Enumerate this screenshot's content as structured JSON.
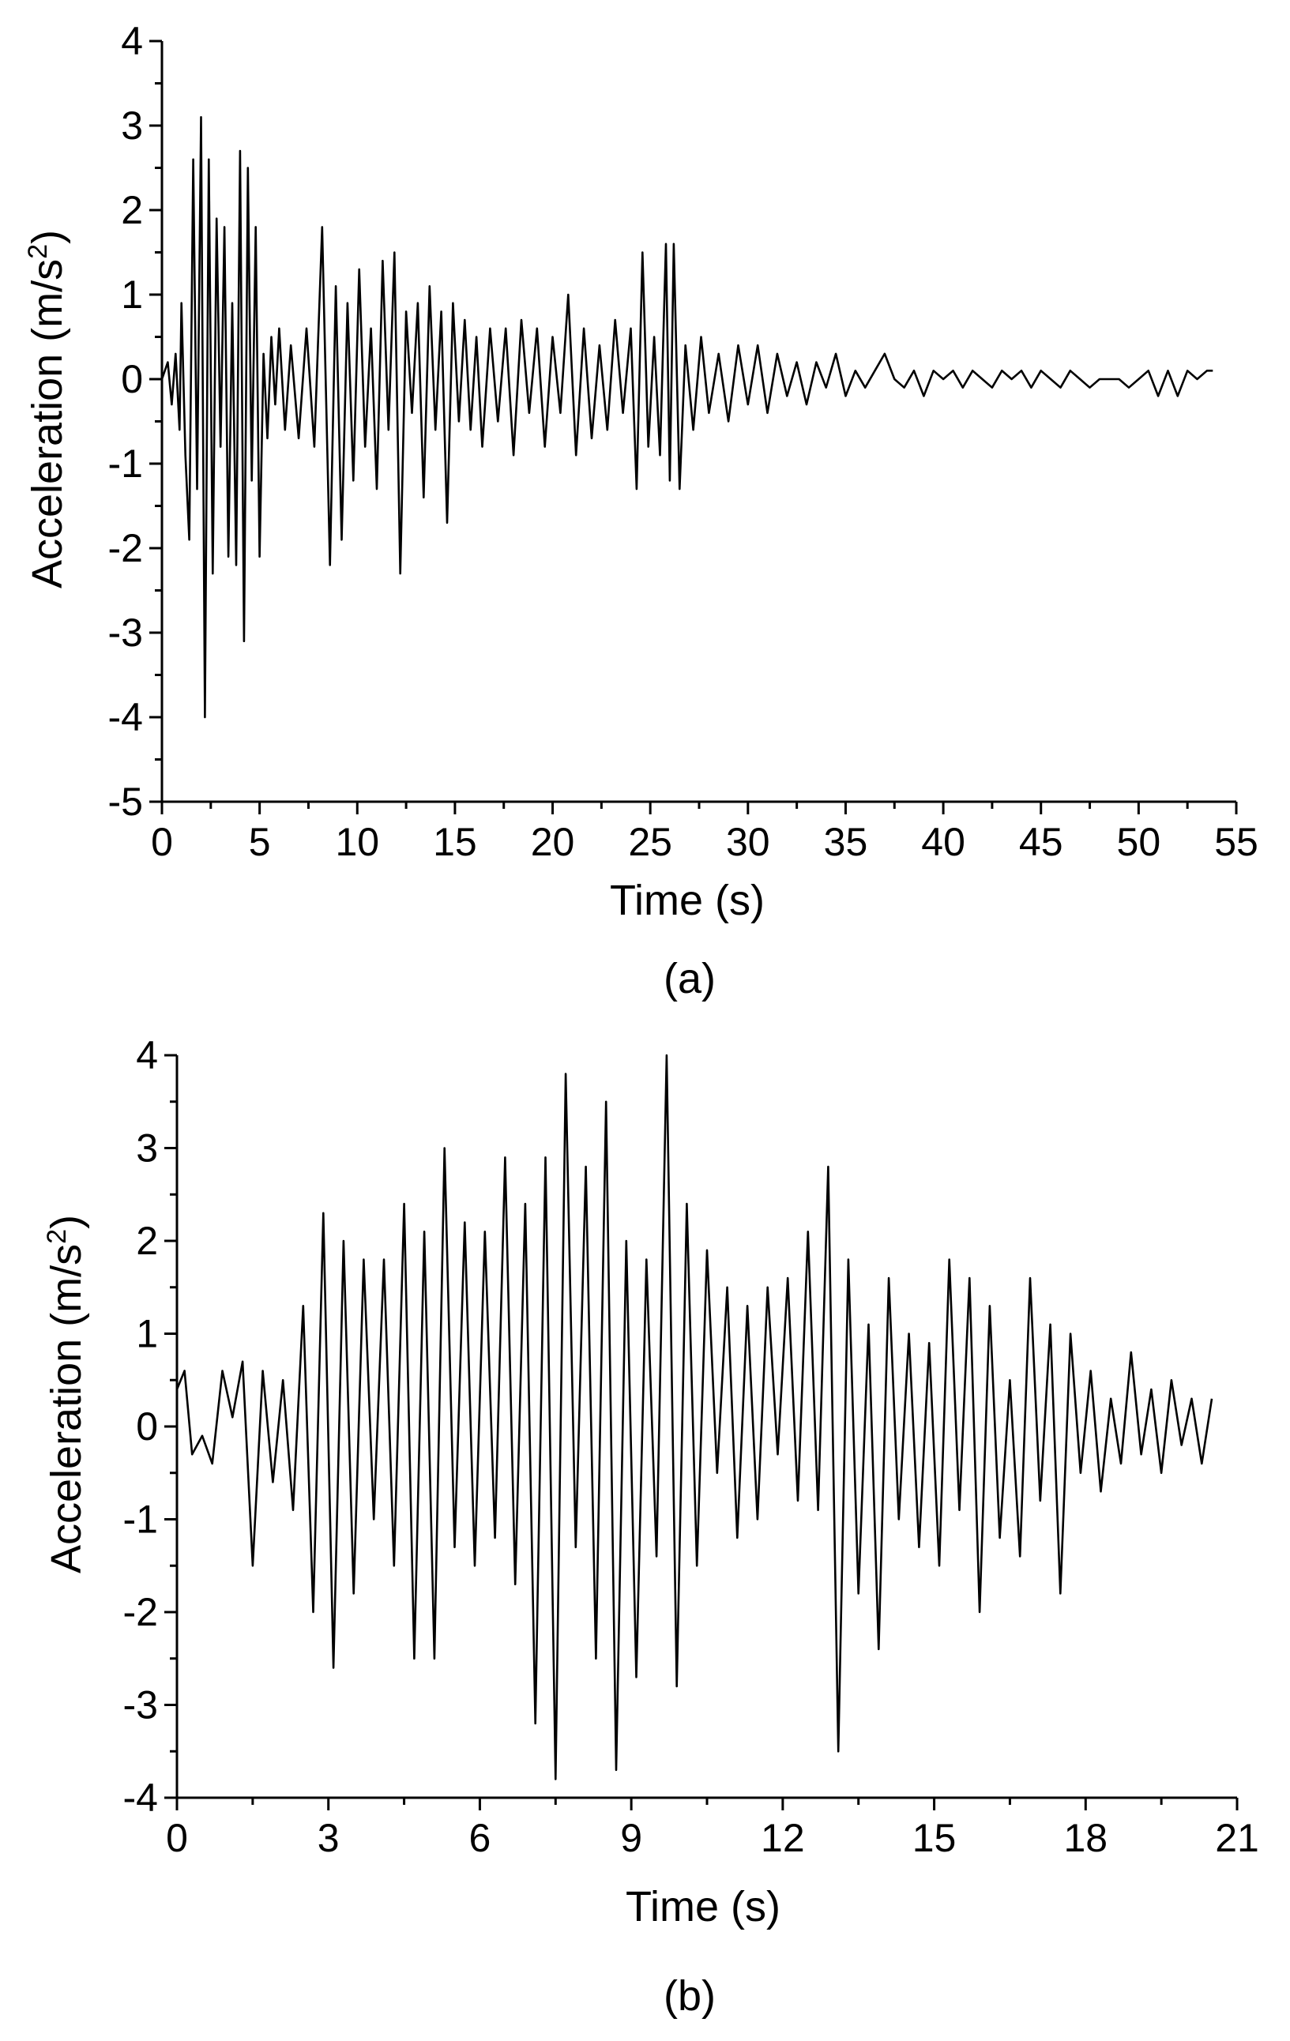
{
  "chart_data": [
    {
      "type": "line",
      "panel_label": "(a)",
      "xlabel": "Time (s)",
      "ylabel_main": "Acceleration (m/s",
      "ylabel_sup": "2",
      "ylabel_tail": ")",
      "xlim": [
        0,
        55
      ],
      "ylim": [
        -5,
        4
      ],
      "xticks": [
        0,
        5,
        10,
        15,
        20,
        25,
        30,
        35,
        40,
        45,
        50,
        55
      ],
      "yticks": [
        4,
        3,
        2,
        1,
        0,
        -1,
        -2,
        -3,
        -4,
        -5
      ],
      "series": [
        {
          "color": "#000000",
          "x": [
            0,
            0.3,
            0.5,
            0.7,
            0.9,
            1.0,
            1.2,
            1.4,
            1.6,
            1.8,
            2.0,
            2.2,
            2.4,
            2.6,
            2.8,
            3.0,
            3.2,
            3.4,
            3.6,
            3.8,
            4.0,
            4.2,
            4.4,
            4.6,
            4.8,
            5.0,
            5.2,
            5.4,
            5.6,
            5.8,
            6.0,
            6.3,
            6.6,
            7.0,
            7.4,
            7.8,
            8.2,
            8.6,
            8.9,
            9.2,
            9.5,
            9.8,
            10.1,
            10.4,
            10.7,
            11.0,
            11.3,
            11.6,
            11.9,
            12.2,
            12.5,
            12.8,
            13.1,
            13.4,
            13.7,
            14.0,
            14.3,
            14.6,
            14.9,
            15.2,
            15.5,
            15.8,
            16.1,
            16.4,
            16.8,
            17.2,
            17.6,
            18.0,
            18.4,
            18.8,
            19.2,
            19.6,
            20.0,
            20.4,
            20.8,
            21.2,
            21.6,
            22.0,
            22.4,
            22.8,
            23.2,
            23.6,
            24.0,
            24.3,
            24.6,
            24.9,
            25.2,
            25.5,
            25.8,
            26.0,
            26.2,
            26.5,
            26.8,
            27.2,
            27.6,
            28.0,
            28.5,
            29.0,
            29.5,
            30.0,
            30.5,
            31.0,
            31.5,
            32.0,
            32.5,
            33.0,
            33.5,
            34.0,
            34.5,
            35.0,
            35.5,
            36.0,
            36.5,
            37.0,
            37.5,
            38.0,
            38.5,
            39.0,
            39.5,
            40.0,
            40.5,
            41.0,
            41.5,
            42.0,
            42.5,
            43.0,
            43.5,
            44.0,
            44.5,
            45.0,
            45.5,
            46.0,
            46.5,
            47.0,
            47.5,
            48.0,
            48.5,
            49.0,
            49.5,
            50.0,
            50.5,
            51.0,
            51.5,
            52.0,
            52.5,
            53.0,
            53.5,
            53.8
          ],
          "y": [
            0,
            0.2,
            -0.3,
            0.3,
            -0.6,
            0.9,
            -0.9,
            -1.9,
            2.6,
            -1.3,
            3.1,
            -4.0,
            2.6,
            -2.3,
            1.9,
            -0.8,
            1.8,
            -2.1,
            0.9,
            -2.2,
            2.7,
            -3.1,
            2.5,
            -1.2,
            1.8,
            -2.1,
            0.3,
            -0.7,
            0.5,
            -0.3,
            0.6,
            -0.6,
            0.4,
            -0.7,
            0.6,
            -0.8,
            1.8,
            -2.2,
            1.1,
            -1.9,
            0.9,
            -1.2,
            1.3,
            -0.8,
            0.6,
            -1.3,
            1.4,
            -0.6,
            1.5,
            -2.3,
            0.8,
            -0.4,
            0.9,
            -1.4,
            1.1,
            -0.6,
            0.8,
            -1.7,
            0.9,
            -0.5,
            0.7,
            -0.6,
            0.5,
            -0.8,
            0.6,
            -0.5,
            0.6,
            -0.9,
            0.7,
            -0.4,
            0.6,
            -0.8,
            0.5,
            -0.4,
            1.0,
            -0.9,
            0.6,
            -0.7,
            0.4,
            -0.6,
            0.7,
            -0.4,
            0.6,
            -1.3,
            1.5,
            -0.8,
            0.5,
            -0.9,
            1.6,
            -1.2,
            1.6,
            -1.3,
            0.4,
            -0.6,
            0.5,
            -0.4,
            0.3,
            -0.5,
            0.4,
            -0.3,
            0.4,
            -0.4,
            0.3,
            -0.2,
            0.2,
            -0.3,
            0.2,
            -0.1,
            0.3,
            -0.2,
            0.1,
            -0.1,
            0.1,
            0.3,
            0.0,
            -0.1,
            0.1,
            -0.2,
            0.1,
            0.0,
            0.1,
            -0.1,
            0.1,
            0.0,
            -0.1,
            0.1,
            0.0,
            0.1,
            -0.1,
            0.1,
            0.0,
            -0.1,
            0.1,
            0.0,
            -0.1,
            0.0,
            0.0,
            0.0,
            -0.1,
            0.0,
            0.1,
            -0.2,
            0.1,
            -0.2,
            0.1,
            0.0,
            0.1,
            0.1
          ]
        }
      ]
    },
    {
      "type": "line",
      "panel_label": "(b)",
      "xlabel": "Time (s)",
      "ylabel_main": "Acceleration (m/s",
      "ylabel_sup": "2",
      "ylabel_tail": ")",
      "xlim": [
        0,
        21
      ],
      "ylim": [
        -4,
        4
      ],
      "xticks": [
        0,
        3,
        6,
        9,
        12,
        15,
        18,
        21
      ],
      "yticks": [
        4,
        3,
        2,
        1,
        0,
        -1,
        -2,
        -3,
        -4
      ],
      "series": [
        {
          "color": "#000000",
          "x": [
            0,
            0.15,
            0.3,
            0.5,
            0.7,
            0.9,
            1.1,
            1.3,
            1.5,
            1.7,
            1.9,
            2.1,
            2.3,
            2.5,
            2.7,
            2.9,
            3.1,
            3.3,
            3.5,
            3.7,
            3.9,
            4.1,
            4.3,
            4.5,
            4.7,
            4.9,
            5.1,
            5.3,
            5.5,
            5.7,
            5.9,
            6.1,
            6.3,
            6.5,
            6.7,
            6.9,
            7.1,
            7.3,
            7.5,
            7.7,
            7.9,
            8.1,
            8.3,
            8.5,
            8.7,
            8.9,
            9.1,
            9.3,
            9.5,
            9.7,
            9.9,
            10.1,
            10.3,
            10.5,
            10.7,
            10.9,
            11.1,
            11.3,
            11.5,
            11.7,
            11.9,
            12.1,
            12.3,
            12.5,
            12.7,
            12.9,
            13.1,
            13.3,
            13.5,
            13.7,
            13.9,
            14.1,
            14.3,
            14.5,
            14.7,
            14.9,
            15.1,
            15.3,
            15.5,
            15.7,
            15.9,
            16.1,
            16.3,
            16.5,
            16.7,
            16.9,
            17.1,
            17.3,
            17.5,
            17.7,
            17.9,
            18.1,
            18.3,
            18.5,
            18.7,
            18.9,
            19.1,
            19.3,
            19.5,
            19.7,
            19.9,
            20.1,
            20.3,
            20.5
          ],
          "y": [
            0.4,
            0.6,
            -0.3,
            -0.1,
            -0.4,
            0.6,
            0.1,
            0.7,
            -1.5,
            0.6,
            -0.6,
            0.5,
            -0.9,
            1.3,
            -2.0,
            2.3,
            -2.6,
            2.0,
            -1.8,
            1.8,
            -1.0,
            1.8,
            -1.5,
            2.4,
            -2.5,
            2.1,
            -2.5,
            3.0,
            -1.3,
            2.2,
            -1.5,
            2.1,
            -1.2,
            2.9,
            -1.7,
            2.4,
            -3.2,
            2.9,
            -3.8,
            3.8,
            -1.3,
            2.8,
            -2.5,
            3.5,
            -3.7,
            2.0,
            -2.7,
            1.8,
            -1.4,
            4.0,
            -2.8,
            2.4,
            -1.5,
            1.9,
            -0.5,
            1.5,
            -1.2,
            1.3,
            -1.0,
            1.5,
            -0.3,
            1.6,
            -0.8,
            2.1,
            -0.9,
            2.8,
            -3.5,
            1.8,
            -1.8,
            1.1,
            -2.4,
            1.6,
            -1.0,
            1.0,
            -1.3,
            0.9,
            -1.5,
            1.8,
            -0.9,
            1.6,
            -2.0,
            1.3,
            -1.2,
            0.5,
            -1.4,
            1.6,
            -0.8,
            1.1,
            -1.8,
            1.0,
            -0.5,
            0.6,
            -0.7,
            0.3,
            -0.4,
            0.8,
            -0.3,
            0.4,
            -0.5,
            0.5,
            -0.2,
            0.3,
            -0.4,
            0.3
          ]
        }
      ]
    }
  ]
}
